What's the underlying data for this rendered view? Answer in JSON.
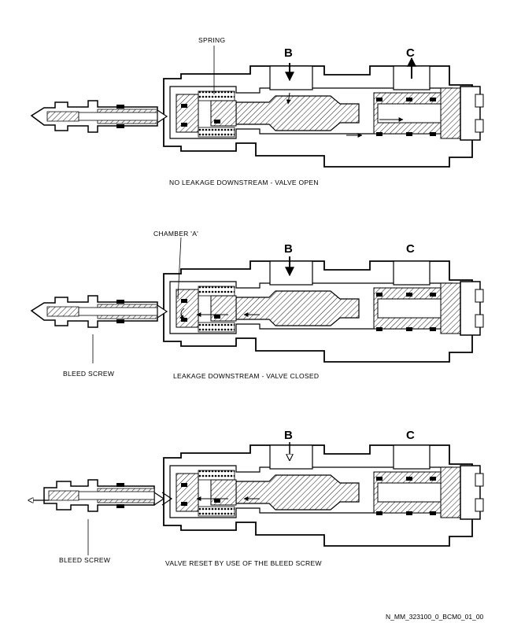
{
  "panels": [
    {
      "caption": "NO LEAKAGE DOWNSTREAM - VALVE OPEN",
      "label_b": "B",
      "label_c": "C",
      "callout": "SPRING"
    },
    {
      "caption": "LEAKAGE DOWNSTREAM - VALVE CLOSED",
      "label_b": "B",
      "label_c": "C",
      "callout": "CHAMBER 'A'",
      "bleed_label": "BLEED SCREW"
    },
    {
      "caption": "VALVE RESET BY USE OF THE BLEED SCREW",
      "label_b": "B",
      "label_c": "C",
      "bleed_label": "BLEED SCREW"
    }
  ],
  "figure_code": "N_MM_323100_0_BCM0_01_00"
}
